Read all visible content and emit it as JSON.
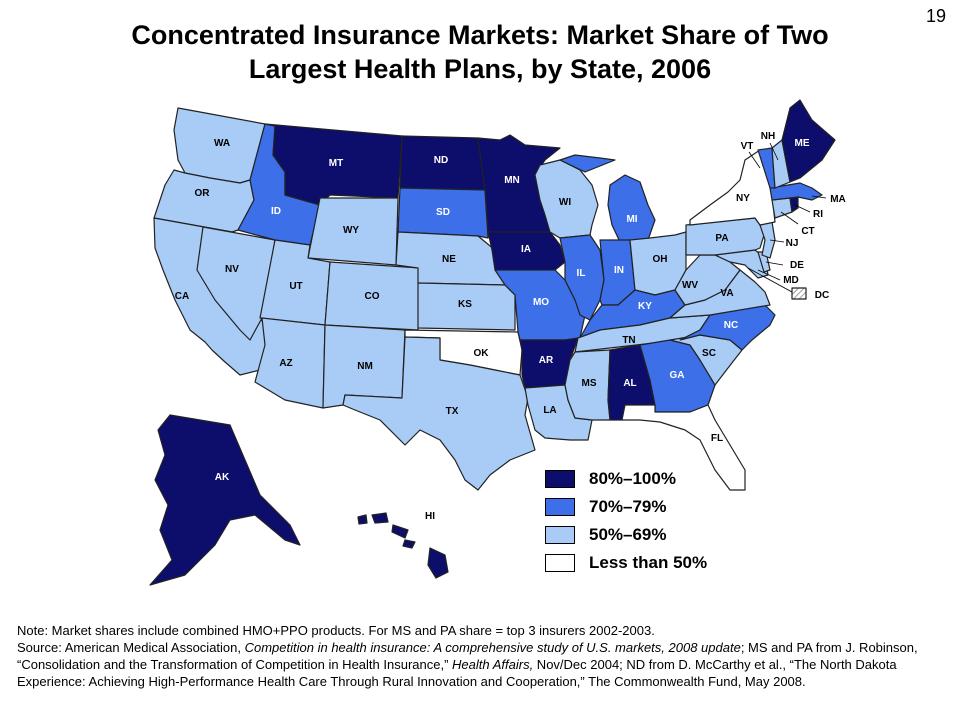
{
  "slide_number": "19",
  "title_line1": "Concentrated Insurance Markets: Market Share of Two",
  "title_line2": "Largest Health Plans, by State, 2006",
  "colors": {
    "c80_100": "#0d0d6b",
    "c70_79": "#3d6fe8",
    "c50_69": "#a8ccf5",
    "less50": "#ffffff",
    "hatch": "#888888"
  },
  "legend": [
    {
      "label": "80%–100%",
      "color_key": "c80_100"
    },
    {
      "label": "70%–79%",
      "color_key": "c70_79"
    },
    {
      "label": "50%–69%",
      "color_key": "c50_69"
    },
    {
      "label": "Less than 50%",
      "color_key": "less50"
    }
  ],
  "states": {
    "WA": {
      "label": "WA",
      "category": "c50_69"
    },
    "OR": {
      "label": "OR",
      "category": "c50_69"
    },
    "CA": {
      "label": "CA",
      "category": "c50_69"
    },
    "NV": {
      "label": "NV",
      "category": "c50_69"
    },
    "ID": {
      "label": "ID",
      "category": "c70_79"
    },
    "MT": {
      "label": "MT",
      "category": "c80_100"
    },
    "WY": {
      "label": "WY",
      "category": "c50_69"
    },
    "UT": {
      "label": "UT",
      "category": "c50_69"
    },
    "AZ": {
      "label": "AZ",
      "category": "c50_69"
    },
    "CO": {
      "label": "CO",
      "category": "c50_69"
    },
    "NM": {
      "label": "NM",
      "category": "c50_69"
    },
    "ND": {
      "label": "ND",
      "category": "c80_100"
    },
    "SD": {
      "label": "SD",
      "category": "c70_79"
    },
    "NE": {
      "label": "NE",
      "category": "c50_69"
    },
    "KS": {
      "label": "KS",
      "category": "c50_69"
    },
    "OK": {
      "label": "OK",
      "category": "less50"
    },
    "TX": {
      "label": "TX",
      "category": "c50_69"
    },
    "MN": {
      "label": "MN",
      "category": "c80_100"
    },
    "IA": {
      "label": "IA",
      "category": "c80_100"
    },
    "MO": {
      "label": "MO",
      "category": "c70_79"
    },
    "AR": {
      "label": "AR",
      "category": "c80_100"
    },
    "LA": {
      "label": "LA",
      "category": "c50_69"
    },
    "WI": {
      "label": "WI",
      "category": "c50_69"
    },
    "IL": {
      "label": "IL",
      "category": "c70_79"
    },
    "MI": {
      "label": "MI",
      "category": "c70_79"
    },
    "IN": {
      "label": "IN",
      "category": "c70_79"
    },
    "OH": {
      "label": "OH",
      "category": "c50_69"
    },
    "KY": {
      "label": "KY",
      "category": "c70_79"
    },
    "TN": {
      "label": "TN",
      "category": "c50_69"
    },
    "MS": {
      "label": "MS",
      "category": "c50_69"
    },
    "AL": {
      "label": "AL",
      "category": "c80_100"
    },
    "GA": {
      "label": "GA",
      "category": "c70_79"
    },
    "FL": {
      "label": "FL",
      "category": "less50"
    },
    "SC": {
      "label": "SC",
      "category": "c50_69"
    },
    "NC": {
      "label": "NC",
      "category": "c70_79"
    },
    "VA": {
      "label": "VA",
      "category": "c50_69"
    },
    "WV": {
      "label": "WV",
      "category": "c50_69"
    },
    "PA": {
      "label": "PA",
      "category": "c50_69"
    },
    "NY": {
      "label": "NY",
      "category": "less50"
    },
    "VT": {
      "label": "VT",
      "category": "c70_79"
    },
    "NH": {
      "label": "NH",
      "category": "c50_69"
    },
    "ME": {
      "label": "ME",
      "category": "c80_100"
    },
    "MA": {
      "label": "MA",
      "category": "c70_79"
    },
    "RI": {
      "label": "RI",
      "category": "c80_100"
    },
    "CT": {
      "label": "CT",
      "category": "c50_69"
    },
    "NJ": {
      "label": "NJ",
      "category": "c50_69"
    },
    "DE": {
      "label": "DE",
      "category": "c50_69"
    },
    "MD": {
      "label": "MD",
      "category": "c50_69"
    },
    "DC": {
      "label": "DC",
      "category": "hatch"
    },
    "AK": {
      "label": "AK",
      "category": "c80_100"
    },
    "HI": {
      "label": "HI",
      "category": "c80_100"
    }
  },
  "notes": {
    "line1": "Note: Market shares include combined HMO+PPO products. For MS and PA share = top 3 insurers 2002-2003.",
    "src_prefix": "Source: American Medical Association, ",
    "src_title1": "Competition in health insurance: A comprehensive study of U.S. markets, 2008 update",
    "src_mid1": "; MS and PA from J. Robinson, “Consolidation and the Transformation of Competition in Health Insurance,” ",
    "src_journal": "Health Affairs,",
    "src_mid2": " Nov/Dec 2004; ND from D. McCarthy et al., “The North Dakota Experience: Achieving High-Performance Health Care Through Rural Innovation and Cooperation,” The Commonwealth Fund, May 2008."
  }
}
